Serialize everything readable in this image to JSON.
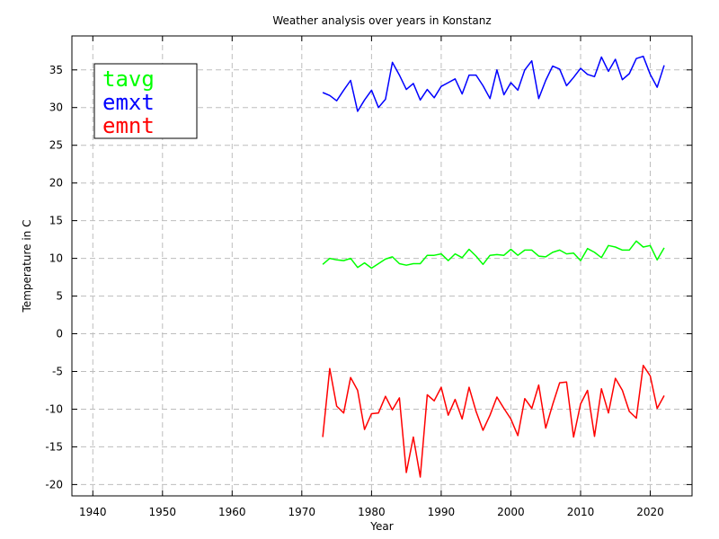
{
  "chart_data": {
    "type": "line",
    "title": "Weather analysis over years in Konstanz",
    "xlabel": "Year",
    "ylabel": "Temperature in C",
    "xlim": [
      1937,
      2026
    ],
    "ylim": [
      -21.5,
      39.5
    ],
    "xticks": [
      1940,
      1950,
      1960,
      1970,
      1980,
      1990,
      2000,
      2010,
      2020
    ],
    "yticks": [
      -20,
      -15,
      -10,
      -5,
      0,
      5,
      10,
      15,
      20,
      25,
      30,
      35
    ],
    "grid": true,
    "legend_placement": "top-left",
    "x": [
      1973,
      1974,
      1975,
      1976,
      1977,
      1978,
      1979,
      1980,
      1981,
      1982,
      1983,
      1984,
      1985,
      1986,
      1987,
      1988,
      1989,
      1990,
      1991,
      1992,
      1993,
      1994,
      1995,
      1996,
      1997,
      1998,
      1999,
      2000,
      2001,
      2002,
      2003,
      2004,
      2005,
      2006,
      2007,
      2008,
      2009,
      2010,
      2011,
      2012,
      2013,
      2014,
      2015,
      2016,
      2017,
      2018,
      2019,
      2020,
      2021,
      2022
    ],
    "series": [
      {
        "name": "tavg",
        "color": "#00ff00",
        "values": [
          9.2,
          10.0,
          9.8,
          9.7,
          10.0,
          8.8,
          9.4,
          8.7,
          9.3,
          9.9,
          10.2,
          9.3,
          9.1,
          9.3,
          9.3,
          10.4,
          10.4,
          10.6,
          9.7,
          10.6,
          10.1,
          11.2,
          10.3,
          9.2,
          10.4,
          10.5,
          10.4,
          11.2,
          10.4,
          11.1,
          11.1,
          10.3,
          10.2,
          10.8,
          11.1,
          10.6,
          10.7,
          9.7,
          11.3,
          10.8,
          10.1,
          11.7,
          11.5,
          11.1,
          11.1,
          12.3,
          11.5,
          11.7,
          9.8,
          11.4
        ]
      },
      {
        "name": "emxt",
        "color": "#0000ff",
        "values": [
          32.0,
          31.6,
          30.9,
          32.3,
          33.6,
          29.5,
          31.0,
          32.3,
          30.0,
          31.1,
          36.0,
          34.3,
          32.4,
          33.2,
          31.0,
          32.4,
          31.3,
          32.8,
          33.3,
          33.8,
          31.8,
          34.3,
          34.3,
          32.9,
          31.2,
          35.0,
          31.7,
          33.3,
          32.3,
          35.0,
          36.2,
          31.2,
          33.6,
          35.5,
          35.1,
          32.9,
          34.0,
          35.2,
          34.4,
          34.1,
          36.7,
          34.8,
          36.4,
          33.7,
          34.5,
          36.5,
          36.8,
          34.4,
          32.7,
          35.6
        ]
      },
      {
        "name": "emnt",
        "color": "#ff0000",
        "values": [
          -13.7,
          -4.6,
          -9.6,
          -10.5,
          -5.8,
          -7.5,
          -12.7,
          -10.6,
          -10.5,
          -8.3,
          -10.1,
          -8.5,
          -18.4,
          -13.7,
          -19.0,
          -8.1,
          -8.9,
          -7.1,
          -10.8,
          -8.7,
          -11.3,
          -7.1,
          -10.3,
          -12.8,
          -10.8,
          -8.4,
          -9.9,
          -11.3,
          -13.5,
          -8.6,
          -9.9,
          -6.8,
          -12.5,
          -9.4,
          -6.5,
          -6.4,
          -13.7,
          -9.3,
          -7.5,
          -13.6,
          -7.3,
          -10.5,
          -5.9,
          -7.5,
          -10.3,
          -11.2,
          -4.2,
          -5.6,
          -9.9,
          -8.2
        ]
      }
    ]
  }
}
